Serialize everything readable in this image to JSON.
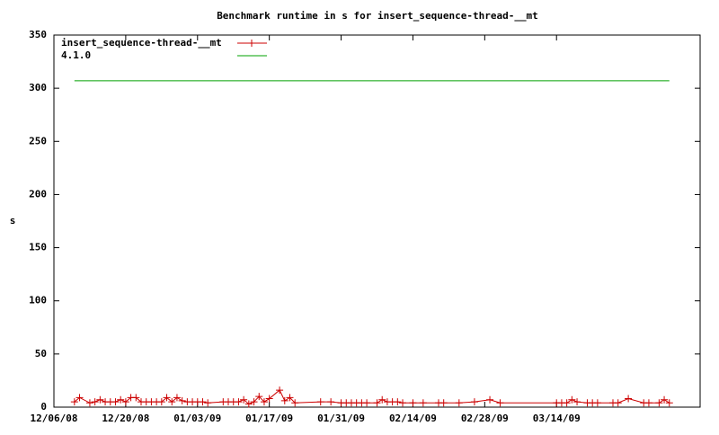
{
  "chart_data": {
    "type": "line",
    "title": "Benchmark runtime in s for insert_sequence-thread-__mt",
    "y_label": "s",
    "xlim": [
      "12/06/08",
      "04/11/09"
    ],
    "xticks": [
      "12/06/08",
      "12/20/08",
      "01/03/09",
      "01/17/09",
      "01/31/09",
      "02/14/09",
      "02/28/09",
      "03/14/09"
    ],
    "ylim": [
      0,
      350
    ],
    "yticks": [
      0,
      50,
      100,
      150,
      200,
      250,
      300,
      350
    ],
    "grid": false,
    "legend": "top-left",
    "series": [
      {
        "name": "insert_sequence-thread-__mt",
        "color": "#cc0000",
        "markers": true,
        "x": [
          "12/10/08",
          "12/11/08",
          "12/13/08",
          "12/14/08",
          "12/15/08",
          "12/16/08",
          "12/17/08",
          "12/18/08",
          "12/19/08",
          "12/20/08",
          "12/21/08",
          "12/22/08",
          "12/23/08",
          "12/24/08",
          "12/25/08",
          "12/26/08",
          "12/27/08",
          "12/28/08",
          "12/29/08",
          "12/30/08",
          "12/31/08",
          "01/01/09",
          "01/02/09",
          "01/03/09",
          "01/04/09",
          "01/05/09",
          "01/08/09",
          "01/09/09",
          "01/10/09",
          "01/11/09",
          "01/12/09",
          "01/13/09",
          "01/14/09",
          "01/15/09",
          "01/16/09",
          "01/17/09",
          "01/19/09",
          "01/20/09",
          "01/21/09",
          "01/22/09",
          "01/27/09",
          "01/29/09",
          "01/31/09",
          "02/01/09",
          "02/02/09",
          "02/03/09",
          "02/04/09",
          "02/05/09",
          "02/07/09",
          "02/08/09",
          "02/09/09",
          "02/10/09",
          "02/11/09",
          "02/12/09",
          "02/14/09",
          "02/16/09",
          "02/19/09",
          "02/20/09",
          "02/23/09",
          "02/26/09",
          "03/01/09",
          "03/03/09",
          "03/14/09",
          "03/15/09",
          "03/16/09",
          "03/17/09",
          "03/18/09",
          "03/20/09",
          "03/21/09",
          "03/22/09",
          "03/25/09",
          "03/26/09",
          "03/28/09",
          "03/31/09",
          "04/01/09",
          "04/03/09",
          "04/04/09",
          "04/05/09"
        ],
        "values": [
          5,
          9,
          4,
          5,
          7,
          5,
          5,
          5,
          7,
          5,
          9,
          9,
          5,
          5,
          5,
          5,
          5,
          9,
          5,
          9,
          6,
          5,
          5,
          5,
          5,
          4,
          5,
          5,
          5,
          5,
          7,
          3,
          5,
          10,
          5,
          8,
          16,
          6,
          9,
          4,
          5,
          5,
          4,
          4,
          4,
          4,
          4,
          4,
          4,
          7,
          5,
          5,
          5,
          4,
          4,
          4,
          4,
          4,
          4,
          5,
          7,
          4,
          4,
          4,
          4,
          7,
          5,
          4,
          4,
          4,
          4,
          4,
          8,
          4,
          4,
          4,
          7,
          4
        ]
      },
      {
        "name": "4.1.0",
        "color": "#00a000",
        "markers": false,
        "x": [
          "12/10/08",
          "04/05/09"
        ],
        "values": [
          307,
          307
        ]
      }
    ]
  }
}
